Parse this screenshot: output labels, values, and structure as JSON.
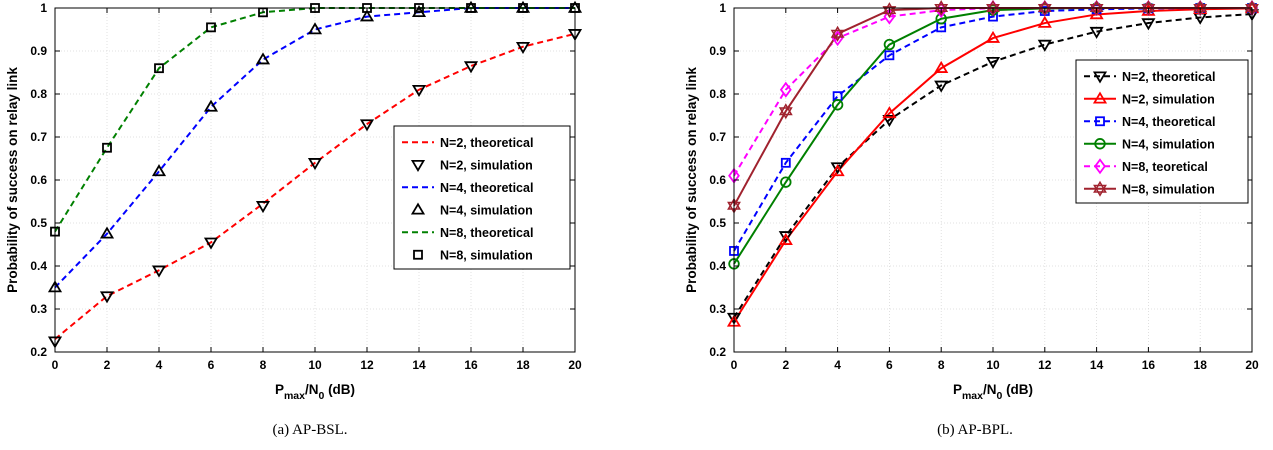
{
  "chart_data": [
    {
      "type": "line",
      "caption": "(a) AP-BSL.",
      "xlabel": {
        "main": "P",
        "sub1": "max",
        "mid": "/N",
        "sub2": "0",
        "tail": " (dB)"
      },
      "ylabel": "Probability of success on relay link",
      "xlim": [
        0,
        20
      ],
      "ylim": [
        0.2,
        1
      ],
      "xticks": [
        0,
        2,
        4,
        6,
        8,
        10,
        12,
        14,
        16,
        18,
        20
      ],
      "yticks": [
        0.2,
        0.3,
        0.4,
        0.5,
        0.6,
        0.7,
        0.8,
        0.9,
        1
      ],
      "grid": true,
      "legend_position": "center-right",
      "series": [
        {
          "name": "N=2, theoretical",
          "color": "#ff0000",
          "dash": true,
          "marker": "none",
          "x": [
            0,
            2,
            4,
            6,
            8,
            10,
            12,
            14,
            16,
            18,
            20
          ],
          "y": [
            0.23,
            0.33,
            0.39,
            0.455,
            0.545,
            0.64,
            0.73,
            0.81,
            0.865,
            0.91,
            0.94
          ]
        },
        {
          "name": "N=2, simulation",
          "color": "#000000",
          "dash": false,
          "noline": true,
          "marker": "tri-down",
          "x": [
            0,
            2,
            4,
            6,
            8,
            10,
            12,
            14,
            16,
            18,
            20
          ],
          "y": [
            0.225,
            0.33,
            0.39,
            0.455,
            0.54,
            0.64,
            0.73,
            0.81,
            0.865,
            0.91,
            0.94
          ]
        },
        {
          "name": "N=4, theoretical",
          "color": "#0000ff",
          "dash": true,
          "marker": "none",
          "x": [
            0,
            2,
            4,
            6,
            8,
            10,
            12,
            14,
            16,
            18,
            20
          ],
          "y": [
            0.35,
            0.475,
            0.62,
            0.77,
            0.88,
            0.95,
            0.98,
            0.99,
            1.0,
            1.0,
            1.0
          ]
        },
        {
          "name": "N=4, simulation",
          "color": "#000000",
          "dash": false,
          "noline": true,
          "marker": "tri-up",
          "x": [
            0,
            2,
            4,
            6,
            8,
            10,
            12,
            14,
            16,
            18,
            20
          ],
          "y": [
            0.35,
            0.475,
            0.62,
            0.77,
            0.88,
            0.95,
            0.98,
            0.99,
            1.0,
            1.0,
            1.0
          ]
        },
        {
          "name": "N=8, theoretical",
          "color": "#008000",
          "dash": true,
          "marker": "none",
          "x": [
            0,
            2,
            4,
            6,
            8,
            10,
            12,
            14,
            16,
            18,
            20
          ],
          "y": [
            0.48,
            0.675,
            0.86,
            0.955,
            0.99,
            1.0,
            1.0,
            1.0,
            1.0,
            1.0,
            1.0
          ]
        },
        {
          "name": "N=8, simulation",
          "color": "#000000",
          "dash": false,
          "noline": true,
          "marker": "square",
          "x": [
            0,
            2,
            4,
            6,
            8,
            10,
            12,
            14,
            16,
            18,
            20
          ],
          "y": [
            0.48,
            0.675,
            0.86,
            0.955,
            0.99,
            1.0,
            1.0,
            1.0,
            1.0,
            1.0,
            1.0
          ]
        }
      ]
    },
    {
      "type": "line",
      "caption": "(b) AP-BPL.",
      "xlabel": {
        "main": "P",
        "sub1": "max",
        "mid": "/N",
        "sub2": "0",
        "tail": " (dB)"
      },
      "ylabel": "Probability of success on relay link",
      "xlim": [
        0,
        20
      ],
      "ylim": [
        0.2,
        1
      ],
      "xticks": [
        0,
        2,
        4,
        6,
        8,
        10,
        12,
        14,
        16,
        18,
        20
      ],
      "yticks": [
        0.2,
        0.3,
        0.4,
        0.5,
        0.6,
        0.7,
        0.8,
        0.9,
        1
      ],
      "grid": true,
      "legend_position": "top-right",
      "series": [
        {
          "name": "N=2, theoretical",
          "color": "#000000",
          "dash": true,
          "marker": "tri-down",
          "x": [
            0,
            2,
            4,
            6,
            8,
            10,
            12,
            14,
            16,
            18,
            20
          ],
          "y": [
            0.28,
            0.47,
            0.63,
            0.74,
            0.82,
            0.875,
            0.915,
            0.945,
            0.965,
            0.978,
            0.986
          ]
        },
        {
          "name": "N=2, simulation",
          "color": "#ff0000",
          "dash": false,
          "marker": "tri-up",
          "x": [
            0,
            2,
            4,
            6,
            8,
            10,
            12,
            14,
            16,
            18,
            20
          ],
          "y": [
            0.27,
            0.46,
            0.62,
            0.755,
            0.86,
            0.93,
            0.965,
            0.985,
            0.993,
            0.997,
            0.999
          ]
        },
        {
          "name": "N=4, theoretical",
          "color": "#0000ff",
          "dash": true,
          "marker": "square",
          "x": [
            0,
            2,
            4,
            6,
            8,
            10,
            12,
            14,
            16,
            18,
            20
          ],
          "y": [
            0.435,
            0.64,
            0.795,
            0.89,
            0.955,
            0.98,
            0.993,
            0.997,
            0.999,
            1.0,
            1.0
          ]
        },
        {
          "name": "N=4, simulation",
          "color": "#008000",
          "dash": false,
          "marker": "circle",
          "x": [
            0,
            2,
            4,
            6,
            8,
            10,
            12,
            14,
            16,
            18,
            20
          ],
          "y": [
            0.405,
            0.595,
            0.775,
            0.915,
            0.975,
            0.995,
            0.999,
            1.0,
            1.0,
            1.0,
            1.0
          ]
        },
        {
          "name": "N=8, teoretical",
          "color": "#ff00ff",
          "dash": true,
          "marker": "diamond",
          "x": [
            0,
            2,
            4,
            6,
            8,
            10,
            12,
            14,
            16,
            18,
            20
          ],
          "y": [
            0.61,
            0.81,
            0.93,
            0.98,
            0.995,
            1.0,
            1.0,
            1.0,
            1.0,
            1.0,
            1.0
          ]
        },
        {
          "name": "N=8, simulation",
          "color": "#a0222e",
          "dash": false,
          "marker": "hexagram",
          "x": [
            0,
            2,
            4,
            6,
            8,
            10,
            12,
            14,
            16,
            18,
            20
          ],
          "y": [
            0.54,
            0.76,
            0.94,
            0.995,
            1.0,
            1.0,
            1.0,
            1.0,
            1.0,
            1.0,
            1.0
          ]
        }
      ]
    }
  ]
}
